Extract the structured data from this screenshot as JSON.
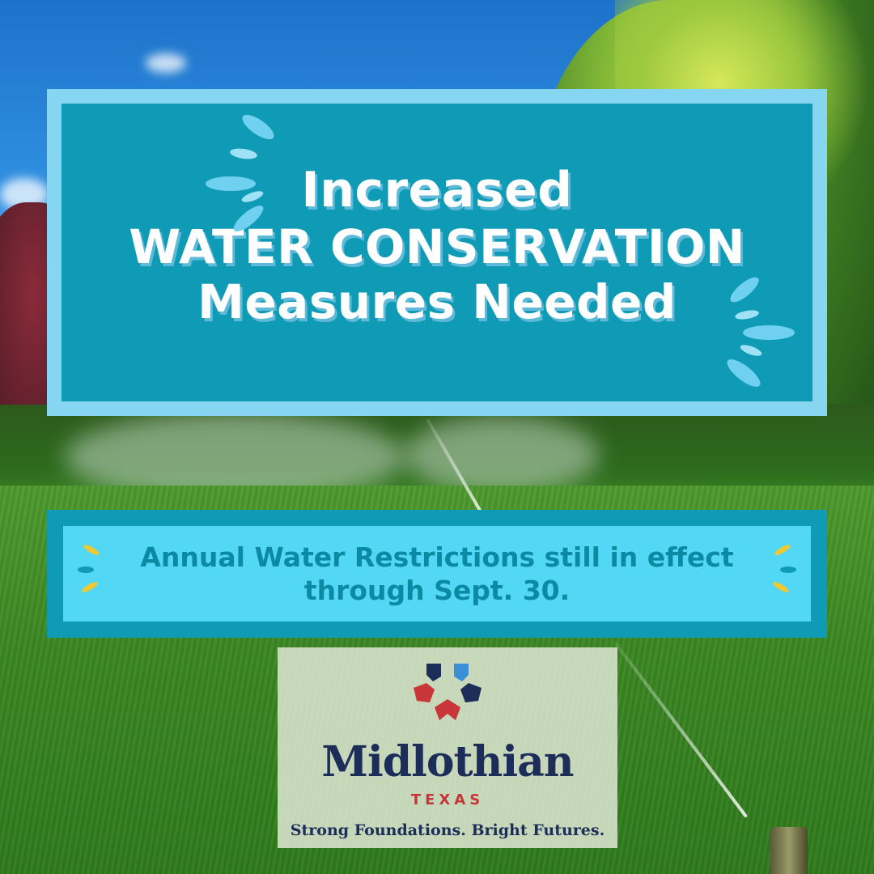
{
  "headline": {
    "line1": "Increased",
    "line2": "WATER CONSERVATION",
    "line3": "Measures Needed"
  },
  "banner": {
    "line1": "Annual Water Restrictions still in effect",
    "line2": "through Sept. 30."
  },
  "logo": {
    "name": "Midlothian",
    "state": "TEXAS",
    "tagline": "Strong Foundations. Bright Futures."
  },
  "colors": {
    "panel_teal": "#0f9bb6",
    "panel_border": "#86d6f2",
    "banner_fill": "#52d7f5",
    "banner_text": "#0d8aa3",
    "logo_navy": "#1d2d5a",
    "logo_red": "#c8363a",
    "logo_blue": "#3a8fd8"
  }
}
